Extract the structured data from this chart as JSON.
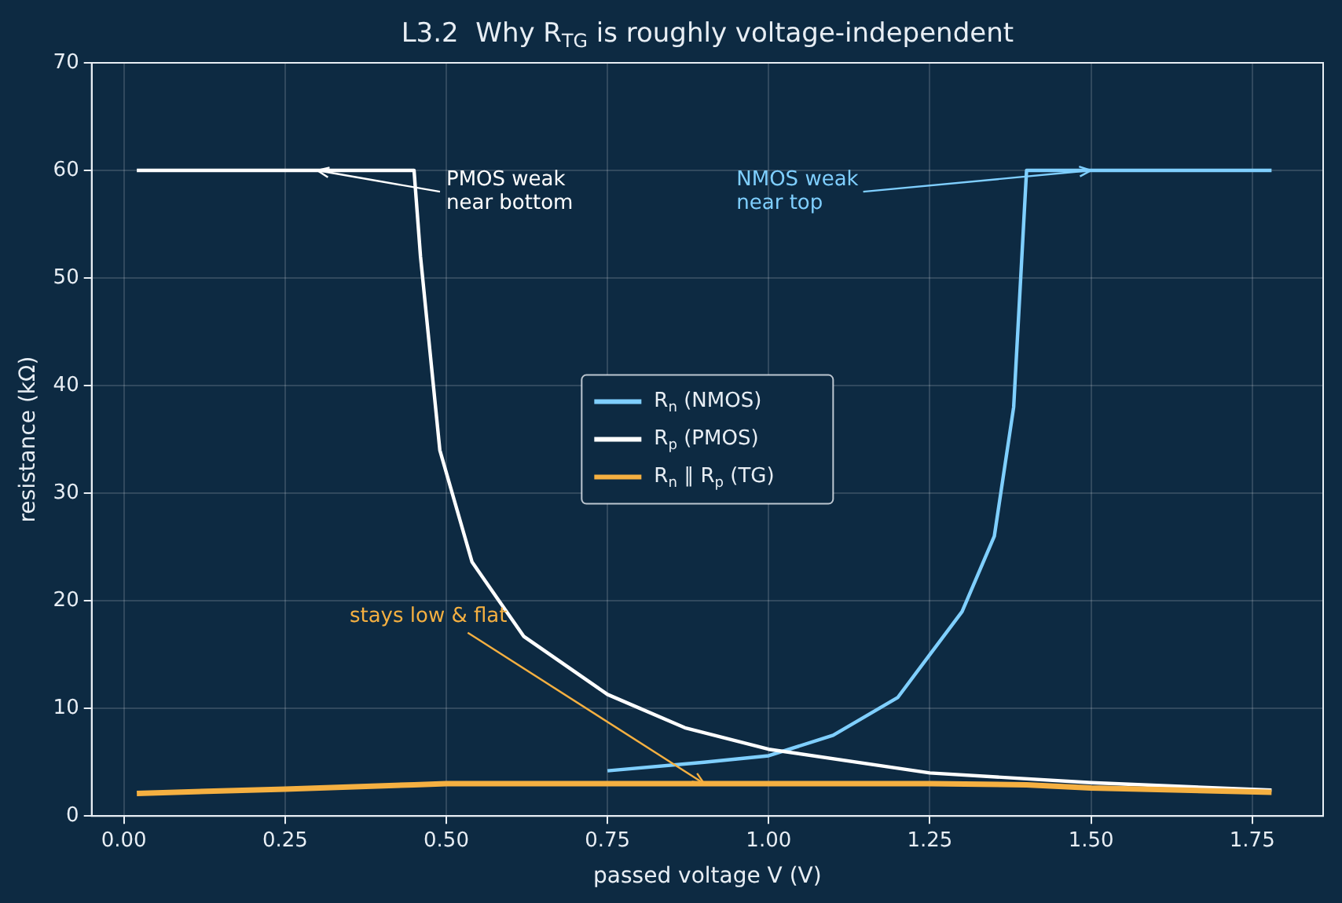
{
  "chart_data": {
    "type": "line",
    "title": "L3.2  Why R$_{TG}$ is roughly voltage-independent",
    "xlabel": "passed voltage V (V)",
    "ylabel": "resistance (kΩ)",
    "series": [
      {
        "name": "R$_{n}$ (NMOS)",
        "color": "#7fcfff",
        "x": [
          0.75,
          0.9,
          1.0,
          1.1,
          1.2,
          1.25,
          1.3,
          1.35,
          1.38,
          1.4,
          1.6,
          1.78
        ],
        "values": [
          4.2,
          5.0,
          5.6,
          7.5,
          11,
          15,
          19,
          26,
          38,
          60,
          60,
          60
        ]
      },
      {
        "name": "R$_{p}$ (PMOS)",
        "color": "#ffffff",
        "x": [
          0.02,
          0.2,
          0.45,
          0.46,
          0.47,
          0.49,
          0.54,
          0.62,
          0.75,
          0.87,
          1.0,
          1.25,
          1.5,
          1.78
        ],
        "values": [
          60,
          60,
          60,
          52,
          46,
          34,
          23.6,
          16.7,
          11.3,
          8.2,
          6.2,
          4.0,
          3.1,
          2.4
        ]
      },
      {
        "name": "R$_{n}$ ∥ R$_{p}$ (TG)",
        "color": "#f5b041",
        "x": [
          0.02,
          0.25,
          0.45,
          0.5,
          0.75,
          1.0,
          1.25,
          1.4,
          1.5,
          1.78
        ],
        "values": [
          2.1,
          2.5,
          2.9,
          3.0,
          3.0,
          3.0,
          3.0,
          2.9,
          2.6,
          2.2
        ]
      }
    ],
    "annotations": [
      {
        "text": "PMOS weak\nnear bottom",
        "x": 0.3,
        "y": 60
      },
      {
        "text": "NMOS weak\nnear top",
        "x": 1.5,
        "y": 60
      },
      {
        "text": "stays low & flat",
        "x": 0.9,
        "y": 3
      }
    ],
    "xlim": [
      -0.05,
      1.86
    ],
    "ylim": [
      0,
      70
    ],
    "xticks": [
      {
        "value": 0,
        "label": "0.00"
      },
      {
        "value": 0.25,
        "label": "0.25"
      },
      {
        "value": 0.5,
        "label": "0.50"
      },
      {
        "value": 0.75,
        "label": "0.75"
      },
      {
        "value": 1,
        "label": "1.00"
      },
      {
        "value": 1.25,
        "label": "1.25"
      },
      {
        "value": 1.5,
        "label": "1.50"
      },
      {
        "value": 1.75,
        "label": "1.75"
      }
    ],
    "yticks": [
      0,
      10,
      20,
      30,
      40,
      50,
      60,
      70
    ],
    "grid": true,
    "legend": "center",
    "marker": "none",
    "line_style": "solid"
  }
}
